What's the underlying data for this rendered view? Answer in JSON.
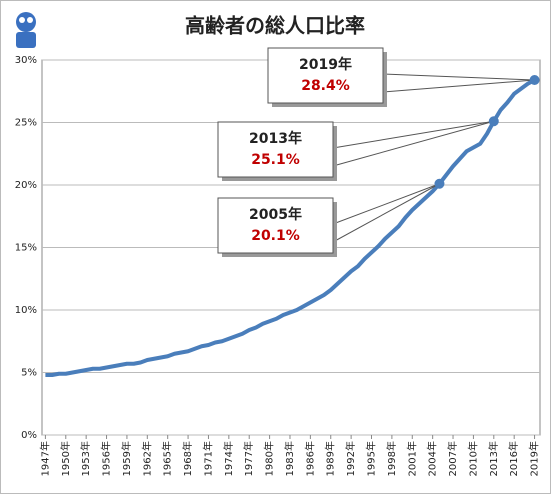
{
  "chart_data": {
    "type": "line",
    "title": "高齢者の総人口比率",
    "x": [
      1947,
      1948,
      1949,
      1950,
      1951,
      1952,
      1953,
      1954,
      1955,
      1956,
      1957,
      1958,
      1959,
      1960,
      1961,
      1962,
      1963,
      1964,
      1965,
      1966,
      1967,
      1968,
      1969,
      1970,
      1971,
      1972,
      1973,
      1974,
      1975,
      1976,
      1977,
      1978,
      1979,
      1980,
      1981,
      1982,
      1983,
      1984,
      1985,
      1986,
      1987,
      1988,
      1989,
      1990,
      1991,
      1992,
      1993,
      1994,
      1995,
      1996,
      1997,
      1998,
      1999,
      2000,
      2001,
      2002,
      2003,
      2004,
      2005,
      2006,
      2007,
      2008,
      2009,
      2010,
      2011,
      2012,
      2013,
      2014,
      2015,
      2016,
      2017,
      2018,
      2019
    ],
    "series": [
      {
        "color": "#4a7ebb",
        "values": [
          4.8,
          4.8,
          4.9,
          4.9,
          5.0,
          5.1,
          5.2,
          5.3,
          5.3,
          5.4,
          5.5,
          5.6,
          5.7,
          5.7,
          5.8,
          6.0,
          6.1,
          6.2,
          6.3,
          6.5,
          6.6,
          6.7,
          6.9,
          7.1,
          7.2,
          7.4,
          7.5,
          7.7,
          7.9,
          8.1,
          8.4,
          8.6,
          8.9,
          9.1,
          9.3,
          9.6,
          9.8,
          10.0,
          10.3,
          10.6,
          10.9,
          11.2,
          11.6,
          12.1,
          12.6,
          13.1,
          13.5,
          14.1,
          14.6,
          15.1,
          15.7,
          16.2,
          16.7,
          17.4,
          18.0,
          18.5,
          19.0,
          19.5,
          20.1,
          20.8,
          21.5,
          22.1,
          22.7,
          23.0,
          23.3,
          24.1,
          25.1,
          26.0,
          26.6,
          27.3,
          27.7,
          28.1,
          28.4
        ]
      }
    ],
    "xlim": [
      1946.5,
      2019.8
    ],
    "xticks": [
      {
        "value": 1947,
        "label": "1947年"
      },
      {
        "value": 1950,
        "label": "1950年"
      },
      {
        "value": 1953,
        "label": "1953年"
      },
      {
        "value": 1956,
        "label": "1956年"
      },
      {
        "value": 1959,
        "label": "1959年"
      },
      {
        "value": 1962,
        "label": "1962年"
      },
      {
        "value": 1965,
        "label": "1965年"
      },
      {
        "value": 1968,
        "label": "1968年"
      },
      {
        "value": 1971,
        "label": "1971年"
      },
      {
        "value": 1974,
        "label": "1974年"
      },
      {
        "value": 1977,
        "label": "1977年"
      },
      {
        "value": 1980,
        "label": "1980年"
      },
      {
        "value": 1983,
        "label": "1983年"
      },
      {
        "value": 1986,
        "label": "1986年"
      },
      {
        "value": 1989,
        "label": "1989年"
      },
      {
        "value": 1992,
        "label": "1992年"
      },
      {
        "value": 1995,
        "label": "1995年"
      },
      {
        "value": 1998,
        "label": "1998年"
      },
      {
        "value": 2001,
        "label": "2001年"
      },
      {
        "value": 2004,
        "label": "2004年"
      },
      {
        "value": 2007,
        "label": "2007年"
      },
      {
        "value": 2010,
        "label": "2010年"
      },
      {
        "value": 2013,
        "label": "2013年"
      },
      {
        "value": 2016,
        "label": "2016年"
      },
      {
        "value": 2019,
        "label": "2019年"
      }
    ],
    "ylim": [
      0,
      30
    ],
    "yticks": [
      {
        "value": 0,
        "label": "0%"
      },
      {
        "value": 5,
        "label": "5%"
      },
      {
        "value": 10,
        "label": "10%"
      },
      {
        "value": 15,
        "label": "15%"
      },
      {
        "value": 20,
        "label": "20%"
      },
      {
        "value": 25,
        "label": "25%"
      },
      {
        "value": 30,
        "label": "30%"
      }
    ],
    "grid": true,
    "annotations": [
      {
        "x": 2019,
        "x_label": "2019年",
        "y": 28.4,
        "y_label": "28.4%"
      },
      {
        "x": 2013,
        "x_label": "2013年",
        "y": 25.1,
        "y_label": "25.1%"
      },
      {
        "x": 2005,
        "x_label": "2005年",
        "y": 20.1,
        "y_label": "20.1%"
      }
    ]
  }
}
